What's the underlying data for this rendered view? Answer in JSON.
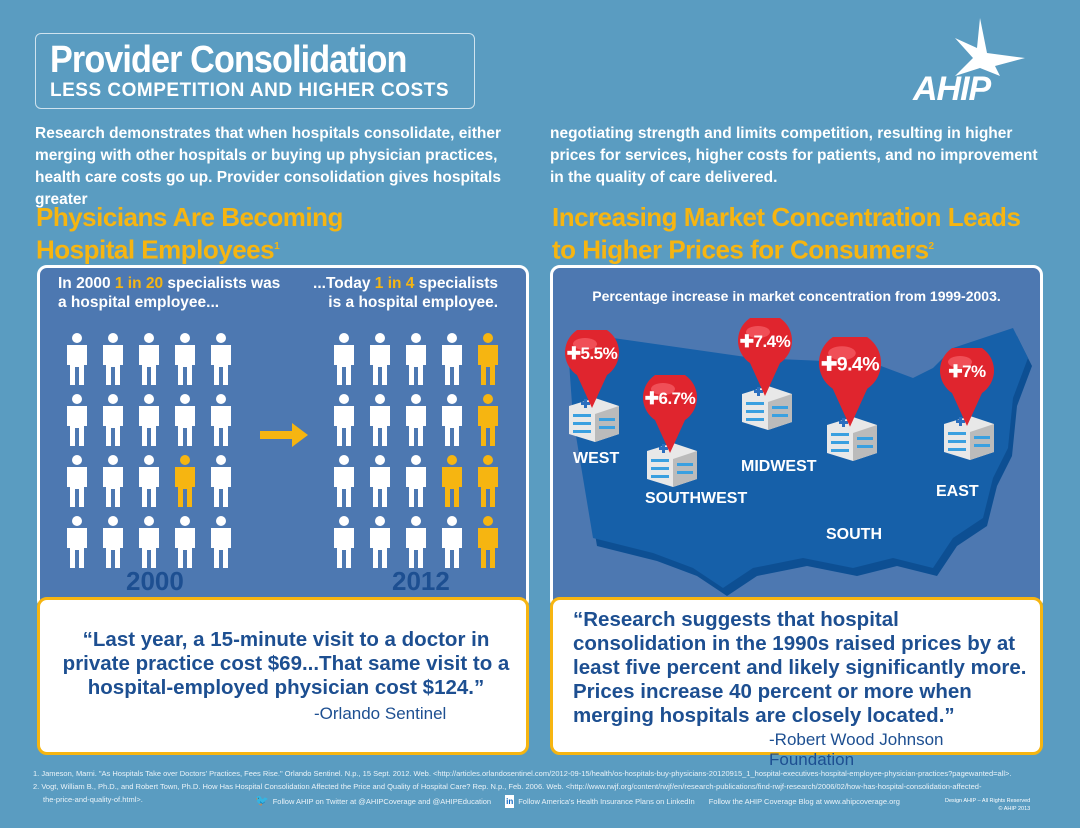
{
  "header": {
    "title": "Provider Consolidation",
    "subtitle": "LESS COMPETITION AND HIGHER COSTS",
    "logo": "AHIP"
  },
  "intro": {
    "left": "Research demonstrates that when hospitals consolidate, either merging with other hospitals or buying up physician practices, health care costs go up.  Provider consolidation gives hospitals greater",
    "right": "negotiating strength and limits competition, resulting in higher prices for services, higher costs for patients, and no improvement in the quality of care delivered."
  },
  "left": {
    "heading1": "Physicians Are Becoming",
    "heading2": "Hospital Employees",
    "sup": "1",
    "cap2000": {
      "a": "In 2000 ",
      "b": "1 in 20",
      "c": " specialists was",
      "d": "a hospital employee..."
    },
    "cap2012": {
      "a": "...Today ",
      "b": "1 in 4",
      "c": " specialists",
      "d": "is a hospital employee."
    },
    "year1": "2000",
    "year2": "2012",
    "grid2000_highlight": [
      13
    ],
    "grid2012_highlight": [
      4,
      9,
      13,
      14,
      19
    ],
    "quote": "“Last year, a 15-minute visit to a doctor in private practice cost $69...That same visit to a hospital-employed physician cost $124.”",
    "source": "-Orlando Sentinel"
  },
  "right": {
    "heading1": "Increasing Market Concentration Leads",
    "heading2": "to Higher Prices for Consumers",
    "sup": "2",
    "caption": "Percentage increase in market concentration from 1999-2003.",
    "regions": [
      {
        "name": "WEST",
        "value": "5.5%"
      },
      {
        "name": "SOUTHWEST",
        "value": "6.7%"
      },
      {
        "name": "MIDWEST",
        "value": "7.4%"
      },
      {
        "name": "SOUTH",
        "value": "9.4%"
      },
      {
        "name": "EAST",
        "value": "7%"
      }
    ],
    "quote": "“Research suggests that hospital consolidation in the 1990s raised prices by at least five percent and likely significantly more. Prices increase 40 percent or more when merging hospitals are closely located.”",
    "source": "-Robert Wood Johnson Foundation"
  },
  "footnotes": [
    "1.  Jameson, Marni. \"As Hospitals Take over Doctors' Practices, Fees Rise.\" Orlando Sentinel. N.p., 15 Sept. 2012. Web. <http://articles.orlandosentinel.com/2012-09-15/health/os-hospitals-buy-physicians-20120915_1_hospital-executives-hospital-employee-physician-practices?pagewanted=all>.",
    "2.  Vogt, William B., Ph.D., and Robert Town, Ph.D. How Has Hospital Consolidation Affected the Price and Quality of Hospital Care? Rep. N.p., Feb. 2006. Web. <http://www.rwjf.org/content/rwjf/en/research-publications/find-rwjf-research/2006/02/how-has-hospital-consolidation-affected-",
    "the-price-and-quality-of.html>."
  ],
  "footer": {
    "twitter": "Follow AHIP on Twitter at @AHIPCoverage and @AHIPEducation",
    "linkedin": "Follow America's Health Insurance Plans on LinkedIn",
    "blog": "Follow the AHIP Coverage Blog at www.ahipcoverage.org",
    "credit1": "Design AHIP – All Rights Reserved",
    "credit2": "© AHIP 2013"
  },
  "colors": {
    "bg": "#5a9cc1",
    "panel": "#4d78b1",
    "accent": "#f6b511",
    "pin": "#e0252e",
    "map": "#1660a9"
  }
}
